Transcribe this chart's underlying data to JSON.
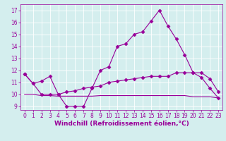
{
  "line1_x": [
    0,
    1,
    2,
    3,
    4,
    5,
    6,
    7,
    8,
    9,
    10,
    11,
    12,
    13,
    14,
    15,
    16,
    17,
    18,
    19,
    20,
    21,
    22,
    23
  ],
  "line1_y": [
    11.7,
    10.9,
    11.1,
    11.5,
    10.0,
    9.0,
    9.0,
    9.0,
    10.5,
    12.0,
    12.3,
    14.0,
    14.2,
    15.0,
    15.2,
    16.1,
    17.0,
    15.7,
    14.6,
    13.3,
    11.8,
    11.8,
    11.3,
    10.2
  ],
  "line2_x": [
    0,
    1,
    2,
    3,
    4,
    5,
    6,
    7,
    8,
    9,
    10,
    11,
    12,
    13,
    14,
    15,
    16,
    17,
    18,
    19,
    20,
    21,
    22,
    23
  ],
  "line2_y": [
    11.7,
    10.9,
    10.0,
    10.0,
    10.0,
    10.2,
    10.3,
    10.5,
    10.6,
    10.7,
    11.0,
    11.1,
    11.2,
    11.3,
    11.4,
    11.5,
    11.5,
    11.5,
    11.8,
    11.8,
    11.8,
    11.4,
    10.5,
    9.7
  ],
  "line3_x": [
    0,
    1,
    2,
    3,
    4,
    5,
    6,
    7,
    8,
    9,
    10,
    11,
    12,
    13,
    14,
    15,
    16,
    17,
    18,
    19,
    20,
    21,
    22,
    23
  ],
  "line3_y": [
    10.0,
    10.0,
    9.9,
    9.9,
    9.85,
    9.85,
    9.85,
    9.85,
    9.85,
    9.9,
    9.9,
    9.9,
    9.9,
    9.9,
    9.9,
    9.9,
    9.9,
    9.9,
    9.9,
    9.9,
    9.8,
    9.8,
    9.8,
    9.7
  ],
  "line_color": "#990099",
  "bg_color": "#d4eeee",
  "grid_color": "#ffffff",
  "xlabel": "Windchill (Refroidissement éolien,°C)",
  "ylim": [
    8.7,
    17.5
  ],
  "xlim": [
    -0.5,
    23.5
  ],
  "yticks": [
    9,
    10,
    11,
    12,
    13,
    14,
    15,
    16,
    17
  ],
  "xticks": [
    0,
    1,
    2,
    3,
    4,
    5,
    6,
    7,
    8,
    9,
    10,
    11,
    12,
    13,
    14,
    15,
    16,
    17,
    18,
    19,
    20,
    21,
    22,
    23
  ],
  "marker": "D",
  "markersize": 2.5,
  "linewidth": 0.8,
  "fontsize_xlabel": 6.5,
  "fontsize_ticks": 5.5
}
